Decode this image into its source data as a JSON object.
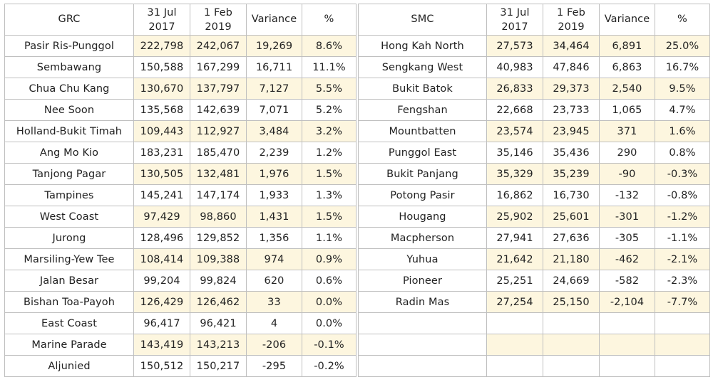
{
  "grc": {
    "headers": {
      "name": "GRC",
      "d1_line1": "31 Jul",
      "d1_line2": "2017",
      "d2_line1": "1 Feb",
      "d2_line2": "2019",
      "variance": "Variance",
      "pct": "%"
    },
    "rows": [
      {
        "name": "Pasir Ris-Punggol",
        "v2017": "222,798",
        "v2019": "242,067",
        "variance": "19,269",
        "pct": "8.6%"
      },
      {
        "name": "Sembawang",
        "v2017": "150,588",
        "v2019": "167,299",
        "variance": "16,711",
        "pct": "11.1%"
      },
      {
        "name": "Chua Chu Kang",
        "v2017": "130,670",
        "v2019": "137,797",
        "variance": "7,127",
        "pct": "5.5%"
      },
      {
        "name": "Nee Soon",
        "v2017": "135,568",
        "v2019": "142,639",
        "variance": "7,071",
        "pct": "5.2%"
      },
      {
        "name": "Holland-Bukit Timah",
        "v2017": "109,443",
        "v2019": "112,927",
        "variance": "3,484",
        "pct": "3.2%"
      },
      {
        "name": "Ang Mo Kio",
        "v2017": "183,231",
        "v2019": "185,470",
        "variance": "2,239",
        "pct": "1.2%"
      },
      {
        "name": "Tanjong Pagar",
        "v2017": "130,505",
        "v2019": "132,481",
        "variance": "1,976",
        "pct": "1.5%"
      },
      {
        "name": "Tampines",
        "v2017": "145,241",
        "v2019": "147,174",
        "variance": "1,933",
        "pct": "1.3%"
      },
      {
        "name": "West Coast",
        "v2017": "97,429",
        "v2019": "98,860",
        "variance": "1,431",
        "pct": "1.5%"
      },
      {
        "name": "Jurong",
        "v2017": "128,496",
        "v2019": "129,852",
        "variance": "1,356",
        "pct": "1.1%"
      },
      {
        "name": "Marsiling-Yew Tee",
        "v2017": "108,414",
        "v2019": "109,388",
        "variance": "974",
        "pct": "0.9%"
      },
      {
        "name": "Jalan Besar",
        "v2017": "99,204",
        "v2019": "99,824",
        "variance": "620",
        "pct": "0.6%"
      },
      {
        "name": "Bishan Toa-Payoh",
        "v2017": "126,429",
        "v2019": "126,462",
        "variance": "33",
        "pct": "0.0%"
      },
      {
        "name": "East Coast",
        "v2017": "96,417",
        "v2019": "96,421",
        "variance": "4",
        "pct": "0.0%"
      },
      {
        "name": "Marine Parade",
        "v2017": "143,419",
        "v2019": "143,213",
        "variance": "-206",
        "pct": "-0.1%"
      },
      {
        "name": "Aljunied",
        "v2017": "150,512",
        "v2019": "150,217",
        "variance": "-295",
        "pct": "-0.2%"
      }
    ]
  },
  "smc": {
    "headers": {
      "name": "SMC",
      "d1_line1": "31 Jul",
      "d1_line2": "2017",
      "d2_line1": "1 Feb",
      "d2_line2": "2019",
      "variance": "Variance",
      "pct": "%"
    },
    "rows": [
      {
        "name": "Hong Kah North",
        "v2017": "27,573",
        "v2019": "34,464",
        "variance": "6,891",
        "pct": "25.0%"
      },
      {
        "name": "Sengkang West",
        "v2017": "40,983",
        "v2019": "47,846",
        "variance": "6,863",
        "pct": "16.7%"
      },
      {
        "name": "Bukit Batok",
        "v2017": "26,833",
        "v2019": "29,373",
        "variance": "2,540",
        "pct": "9.5%"
      },
      {
        "name": "Fengshan",
        "v2017": "22,668",
        "v2019": "23,733",
        "variance": "1,065",
        "pct": "4.7%"
      },
      {
        "name": "Mountbatten",
        "v2017": "23,574",
        "v2019": "23,945",
        "variance": "371",
        "pct": "1.6%"
      },
      {
        "name": "Punggol East",
        "v2017": "35,146",
        "v2019": "35,436",
        "variance": "290",
        "pct": "0.8%"
      },
      {
        "name": "Bukit Panjang",
        "v2017": "35,329",
        "v2019": "35,239",
        "variance": "-90",
        "pct": "-0.3%"
      },
      {
        "name": "Potong Pasir",
        "v2017": "16,862",
        "v2019": "16,730",
        "variance": "-132",
        "pct": "-0.8%"
      },
      {
        "name": "Hougang",
        "v2017": "25,902",
        "v2019": "25,601",
        "variance": "-301",
        "pct": "-1.2%"
      },
      {
        "name": "Macpherson",
        "v2017": "27,941",
        "v2019": "27,636",
        "variance": "-305",
        "pct": "-1.1%"
      },
      {
        "name": "Yuhua",
        "v2017": "21,642",
        "v2019": "21,180",
        "variance": "-462",
        "pct": "-2.1%"
      },
      {
        "name": "Pioneer",
        "v2017": "25,251",
        "v2019": "24,669",
        "variance": "-582",
        "pct": "-2.3%"
      },
      {
        "name": "Radin Mas",
        "v2017": "27,254",
        "v2019": "25,150",
        "variance": "-2,104",
        "pct": "-7.7%"
      },
      {
        "name": "",
        "v2017": "",
        "v2019": "",
        "variance": "",
        "pct": ""
      },
      {
        "name": "",
        "v2017": "",
        "v2019": "",
        "variance": "",
        "pct": ""
      },
      {
        "name": "",
        "v2017": "",
        "v2019": "",
        "variance": "",
        "pct": ""
      }
    ]
  },
  "colors": {
    "highlight": "#fdf6df",
    "border": "#bfbfbf"
  }
}
